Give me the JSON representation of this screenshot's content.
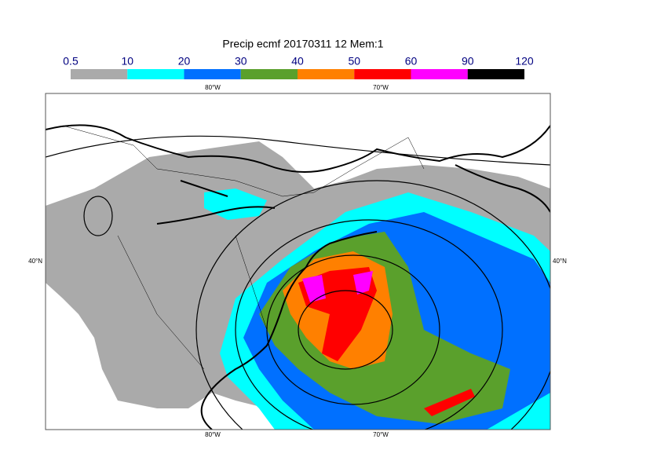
{
  "title": "Precip ecmf 20170311 12 Mem:1",
  "legend": {
    "labels": [
      "0.5",
      "10",
      "20",
      "30",
      "40",
      "50",
      "60",
      "90",
      "120"
    ],
    "colors": [
      "#aaaaaa",
      "#00ffff",
      "#0070ff",
      "#5aa02c",
      "#ff8000",
      "#ff0000",
      "#ff00ff",
      "#000000"
    ]
  },
  "map": {
    "lon_labels": [
      "80°W",
      "70°W"
    ],
    "lat_labels": [
      "40°N"
    ]
  }
}
